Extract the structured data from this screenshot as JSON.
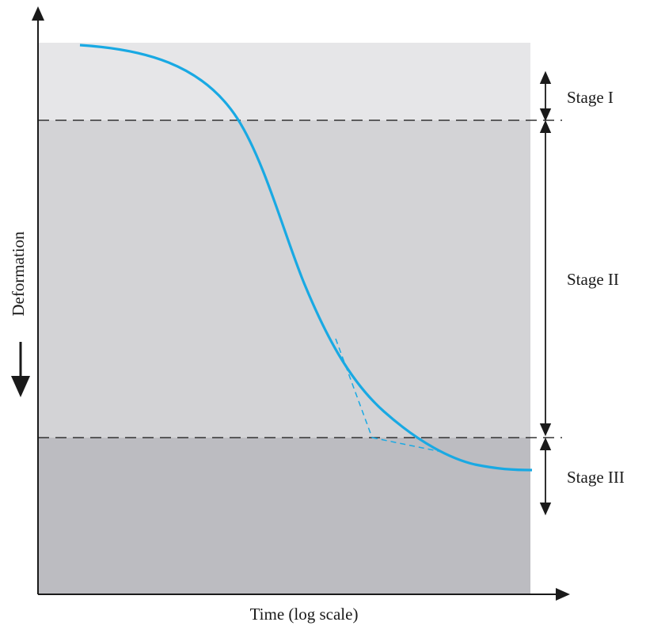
{
  "axes": {
    "x_label": "Time (log scale)",
    "y_label": "Deformation"
  },
  "stages": [
    {
      "label": "Stage I"
    },
    {
      "label": "Stage II"
    },
    {
      "label": "Stage III"
    }
  ],
  "colors": {
    "curve": "#19a9e3",
    "stage_1_band": "#e6e6e8",
    "stage_2_band": "#d3d3d6",
    "stage_3_band": "#bcbcc1",
    "axis": "#1a1a1a",
    "divider": "#333333"
  }
}
